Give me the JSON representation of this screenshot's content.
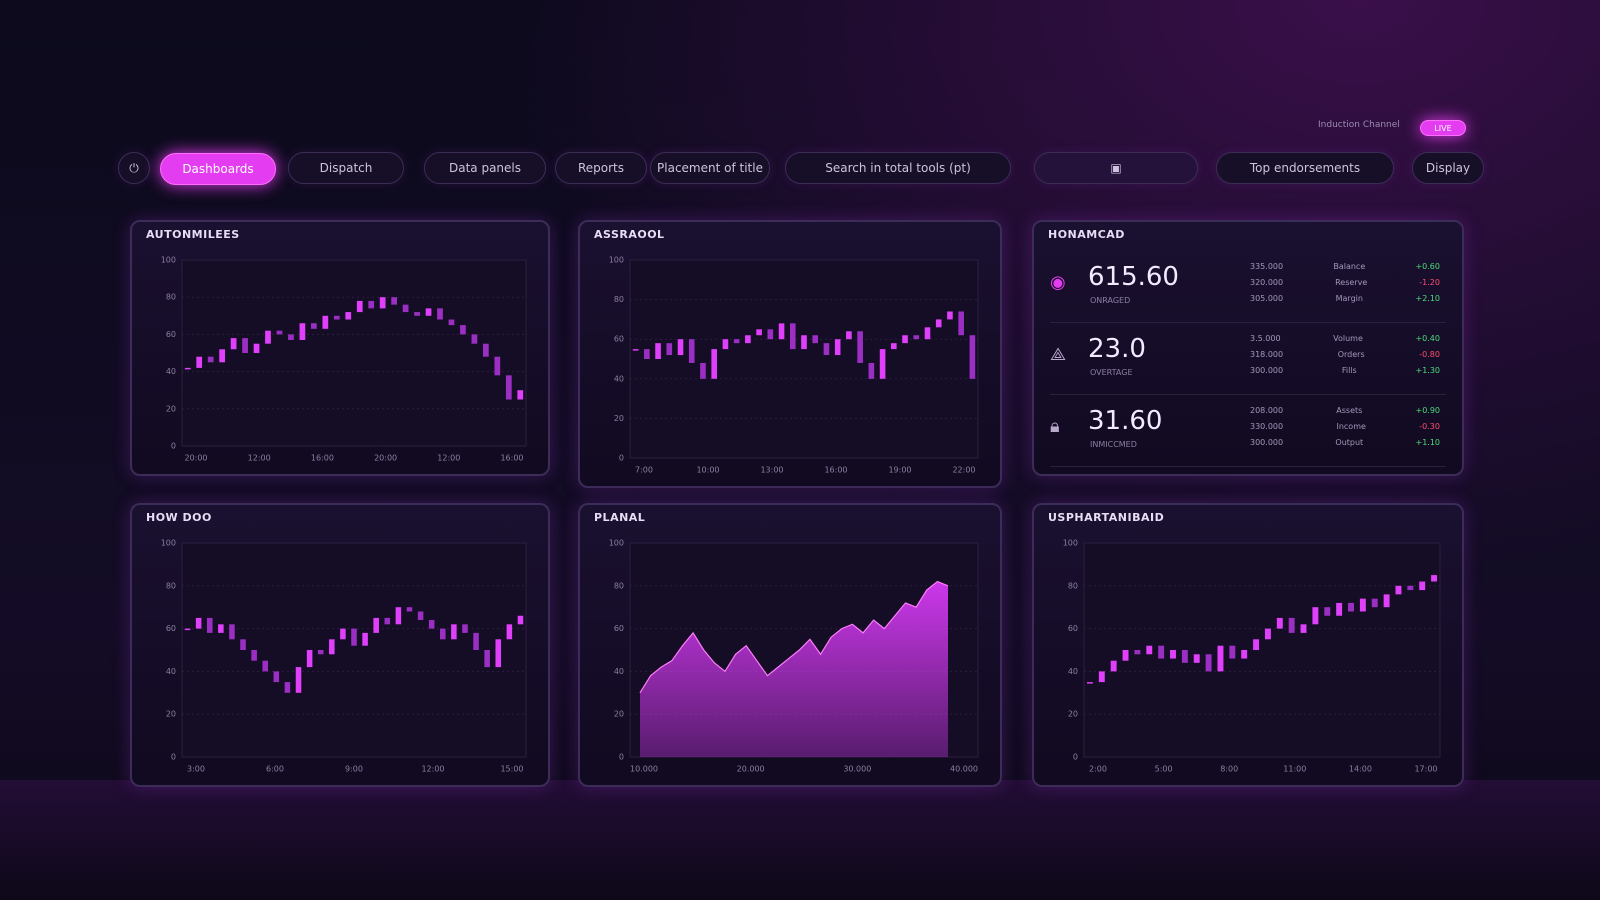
{
  "status": {
    "text": "Induction Channel",
    "pill": "LIVE"
  },
  "toolbar": [
    "Dashboards",
    "Dispatch",
    "Data panels",
    "Reports",
    "Placement of title",
    "Search in total tools (pt)",
    "Top endorsements",
    "Display"
  ],
  "chart_data": [
    {
      "type": "candlestick",
      "title": "AUTONMILEES",
      "color": "#e040fb",
      "ylim": [
        0,
        100
      ],
      "yticks": [
        0,
        20,
        40,
        60,
        80,
        100
      ],
      "x_labels": [
        "20:00",
        "12:00",
        "16:00",
        "20:00",
        "12:00",
        "16:00"
      ],
      "values": [
        42,
        48,
        45,
        52,
        58,
        50,
        55,
        62,
        60,
        57,
        66,
        63,
        70,
        68,
        72,
        78,
        74,
        80,
        76,
        72,
        70,
        74,
        68,
        65,
        60,
        55,
        48,
        38,
        25,
        30
      ]
    },
    {
      "type": "candlestick",
      "title": "ASSRAOOL",
      "color": "#e040fb",
      "ylim": [
        0,
        100
      ],
      "yticks": [
        0,
        20,
        40,
        60,
        80,
        100
      ],
      "x_labels": [
        "7:00",
        "10:00",
        "13:00",
        "16:00",
        "19:00",
        "22:00"
      ],
      "values": [
        55,
        50,
        58,
        52,
        60,
        48,
        40,
        55,
        60,
        58,
        62,
        65,
        60,
        68,
        55,
        62,
        58,
        52,
        60,
        64,
        48,
        40,
        55,
        58,
        62,
        60,
        66,
        70,
        74,
        62,
        40
      ]
    },
    {
      "type": "candlestick",
      "title": "HOW DOO",
      "color": "#e040fb",
      "ylim": [
        0,
        100
      ],
      "yticks": [
        0,
        20,
        40,
        60,
        80,
        100
      ],
      "x_labels": [
        "3:00",
        "6:00",
        "9:00",
        "12:00",
        "15:00"
      ],
      "values": [
        60,
        65,
        58,
        62,
        55,
        50,
        45,
        40,
        35,
        30,
        42,
        50,
        48,
        55,
        60,
        52,
        58,
        65,
        62,
        70,
        68,
        64,
        60,
        55,
        62,
        58,
        50,
        42,
        55,
        62,
        66
      ]
    },
    {
      "type": "area",
      "title": "PLANAL",
      "color": "#d63af5",
      "ylim": [
        0,
        100
      ],
      "yticks": [
        0,
        20,
        40,
        60,
        80,
        100
      ],
      "x_labels": [
        "10.000",
        "20.000",
        "30.000",
        "40.000"
      ],
      "values": [
        30,
        38,
        42,
        45,
        52,
        58,
        50,
        44,
        40,
        48,
        52,
        45,
        38,
        42,
        46,
        50,
        55,
        48,
        56,
        60,
        62,
        58,
        64,
        60,
        66,
        72,
        70,
        78,
        82,
        80
      ]
    },
    {
      "type": "candlestick",
      "title": "USPHARTANIBAID",
      "color": "#e040fb",
      "ylim": [
        0,
        100
      ],
      "yticks": [
        0,
        20,
        40,
        60,
        80,
        100
      ],
      "x_labels": [
        "2:00",
        "5:00",
        "8:00",
        "11:00",
        "14:00",
        "17:00"
      ],
      "values": [
        35,
        40,
        45,
        50,
        48,
        52,
        46,
        50,
        44,
        48,
        40,
        52,
        46,
        50,
        55,
        60,
        65,
        58,
        62,
        70,
        66,
        72,
        68,
        74,
        70,
        76,
        80,
        78,
        82,
        85
      ]
    }
  ],
  "stats_panel": {
    "title": "HONAMCAD",
    "items": [
      {
        "value": "615.60",
        "label": "ONRAGED",
        "rows": [
          [
            "335.000",
            "Balance",
            "+0.60"
          ],
          [
            "320.000",
            "Reserve",
            "-1.20"
          ],
          [
            "305.000",
            "Margin",
            "+2.10"
          ]
        ]
      },
      {
        "value": "23.0",
        "label": "OVERTAGE",
        "rows": [
          [
            "3.5.000",
            "Volume",
            "+0.40"
          ],
          [
            "318.000",
            "Orders",
            "-0.80"
          ],
          [
            "300.000",
            "Fills",
            "+1.30"
          ]
        ]
      },
      {
        "value": "31.60",
        "label": "INMICCMED",
        "rows": [
          [
            "208.000",
            "Assets",
            "+0.90"
          ],
          [
            "330.000",
            "Income",
            "-0.30"
          ],
          [
            "300.000",
            "Output",
            "+1.10"
          ]
        ]
      }
    ]
  }
}
